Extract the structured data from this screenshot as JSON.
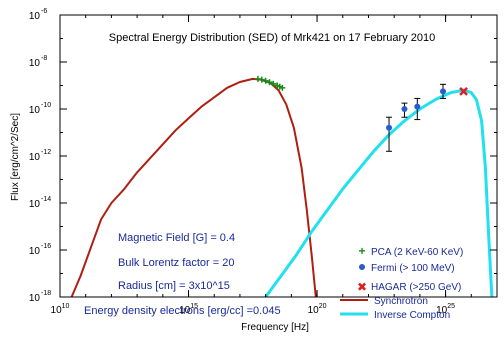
{
  "chart_data": {
    "type": "line",
    "title": "Spectral Energy Distribution (SED) of Mrk421 on 17 February 2010",
    "xlabel": "Frequency [Hz]",
    "ylabel": "Flux [erg/cm^2/Sec]",
    "xscale": "log",
    "yscale": "log",
    "xlim_exp": [
      10,
      27
    ],
    "ylim_exp": [
      -18,
      -6
    ],
    "x_ticks": [
      {
        "exp": 10,
        "label": "10"
      },
      {
        "exp": 15,
        "label": "15"
      },
      {
        "exp": 20,
        "label": "20"
      },
      {
        "exp": 25,
        "label": "25"
      }
    ],
    "y_ticks": [
      {
        "exp": -6,
        "label": "-6"
      },
      {
        "exp": -8,
        "label": "-8"
      },
      {
        "exp": -10,
        "label": "-10"
      },
      {
        "exp": -12,
        "label": "-12"
      },
      {
        "exp": -14,
        "label": "-14"
      },
      {
        "exp": -16,
        "label": "-16"
      },
      {
        "exp": -18,
        "label": "-18"
      }
    ],
    "series": [
      {
        "name": "Synchrotron",
        "kind": "line",
        "color": "#b01e12",
        "log_points": [
          [
            10.45,
            -18.0
          ],
          [
            10.8,
            -17.1
          ],
          [
            11.2,
            -15.9
          ],
          [
            11.6,
            -14.7
          ],
          [
            12.0,
            -14.0
          ],
          [
            12.5,
            -13.4
          ],
          [
            13.0,
            -12.7
          ],
          [
            13.5,
            -12.1
          ],
          [
            14.0,
            -11.5
          ],
          [
            14.5,
            -10.9
          ],
          [
            15.0,
            -10.4
          ],
          [
            15.5,
            -9.9
          ],
          [
            16.0,
            -9.5
          ],
          [
            16.5,
            -9.1
          ],
          [
            17.0,
            -8.85
          ],
          [
            17.5,
            -8.72
          ],
          [
            17.8,
            -8.75
          ],
          [
            18.2,
            -8.9
          ],
          [
            18.5,
            -9.2
          ],
          [
            18.8,
            -9.8
          ],
          [
            19.1,
            -10.8
          ],
          [
            19.4,
            -12.5
          ],
          [
            19.6,
            -14.3
          ],
          [
            19.8,
            -16.3
          ],
          [
            19.95,
            -18.0
          ]
        ]
      },
      {
        "name": "Inverse Compton",
        "kind": "line",
        "color": "#22e0ee",
        "log_points": [
          [
            18.0,
            -18.0
          ],
          [
            18.6,
            -17.1
          ],
          [
            19.2,
            -16.2
          ],
          [
            19.8,
            -15.2
          ],
          [
            20.4,
            -14.3
          ],
          [
            21.0,
            -13.4
          ],
          [
            21.6,
            -12.6
          ],
          [
            22.2,
            -11.8
          ],
          [
            22.8,
            -11.1
          ],
          [
            23.4,
            -10.5
          ],
          [
            24.0,
            -10.0
          ],
          [
            24.6,
            -9.6
          ],
          [
            25.2,
            -9.3
          ],
          [
            25.7,
            -9.2
          ],
          [
            26.0,
            -9.3
          ],
          [
            26.2,
            -9.6
          ],
          [
            26.4,
            -10.5
          ],
          [
            26.55,
            -12.5
          ],
          [
            26.65,
            -14.8
          ],
          [
            26.75,
            -17.0
          ],
          [
            26.8,
            -18.0
          ]
        ]
      },
      {
        "name": "PCA (2 KeV-60 KeV)",
        "kind": "points",
        "marker": "plus",
        "color": "#1a8a1a",
        "log_points": [
          [
            17.7,
            -8.72
          ],
          [
            17.85,
            -8.75
          ],
          [
            18.0,
            -8.8
          ],
          [
            18.15,
            -8.86
          ],
          [
            18.3,
            -8.93
          ],
          [
            18.45,
            -9.0
          ],
          [
            18.55,
            -9.05
          ],
          [
            18.65,
            -9.1
          ]
        ]
      },
      {
        "name": "Fermi (> 100 MeV)",
        "kind": "points",
        "marker": "circle",
        "color": "#2a5bd0",
        "log_points": [
          [
            22.8,
            -10.8
          ],
          [
            23.4,
            -10.0
          ],
          [
            23.9,
            -9.9
          ],
          [
            24.9,
            -9.25
          ]
        ],
        "err_lo": [
          [
            22.8,
            -11.8
          ],
          [
            23.4,
            -10.35
          ],
          [
            23.9,
            -10.45
          ],
          [
            24.9,
            -9.55
          ]
        ],
        "err_hi": [
          [
            22.8,
            -10.35
          ],
          [
            23.4,
            -9.75
          ],
          [
            23.9,
            -9.55
          ],
          [
            24.9,
            -8.95
          ]
        ]
      },
      {
        "name": "HAGAR (>250 GeV)",
        "kind": "points",
        "marker": "cross",
        "color": "#e02020",
        "log_points": [
          [
            25.7,
            -9.25
          ]
        ]
      }
    ],
    "annotations": [
      "Magnetic Field [G] = 0.4",
      "Bulk Lorentz factor = 20",
      "Radius [cm] = 3x10^15",
      "Energy density electrons [erg/cc] =0.045"
    ],
    "legend_position": "bottom-right",
    "grid": false
  },
  "colors": {
    "axis": "#000000",
    "annotation": "#1a2a9a",
    "legend_text": "#1a2a9a"
  }
}
